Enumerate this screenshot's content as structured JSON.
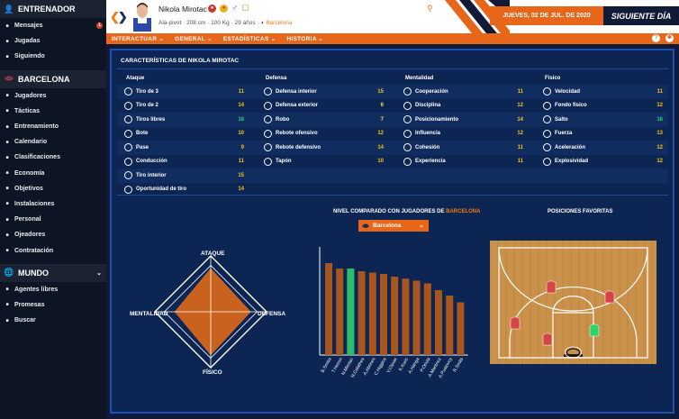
{
  "sidebar": {
    "coach": {
      "title": "ENTRENADOR",
      "items": [
        {
          "label": "Mensajes",
          "icon": "envelope-icon",
          "badge": "1"
        },
        {
          "label": "Jugadas",
          "icon": "clipboard-icon"
        },
        {
          "label": "Siguiendo",
          "icon": "star-icon"
        }
      ]
    },
    "team": {
      "title": "BARCELONA",
      "items": [
        {
          "label": "Jugadores",
          "icon": "people-icon"
        },
        {
          "label": "Tácticas",
          "icon": "tactics-icon"
        },
        {
          "label": "Entrenamiento",
          "icon": "whistle-icon"
        },
        {
          "label": "Calendario",
          "icon": "calendar-icon"
        },
        {
          "label": "Clasificaciones",
          "icon": "standings-icon"
        },
        {
          "label": "Economía",
          "icon": "money-icon"
        },
        {
          "label": "Objetivos",
          "icon": "target-icon"
        },
        {
          "label": "Instalaciones",
          "icon": "building-icon"
        },
        {
          "label": "Personal",
          "icon": "staff-icon"
        },
        {
          "label": "Ojeadores",
          "icon": "binoculars-icon"
        },
        {
          "label": "Contratación",
          "icon": "handshake-icon"
        }
      ]
    },
    "world": {
      "title": "MUNDO",
      "items": [
        {
          "label": "Agentes libres",
          "icon": "free-agents-icon"
        },
        {
          "label": "Promesas",
          "icon": "prospects-icon"
        },
        {
          "label": "Buscar",
          "icon": "search-icon"
        }
      ]
    }
  },
  "header": {
    "player_name": "Nikola Mirotac",
    "player_meta": "Ala-pivot · 208 cm · 100 Kg · 29 años ·",
    "team": "Barcelona",
    "date": "JUEVES, 02 DE JUL. DE 2020",
    "next_day": "SIGUIENTE DÍA"
  },
  "menu": [
    "INTERACTUAR ⌄",
    "GENERAL ⌄",
    "ESTADÍSTICAS ⌄",
    "HISTORIA ⌄"
  ],
  "characteristics": {
    "title": "CARACTERÍSTICAS DE NIKOLA MIROTAC",
    "columns": [
      {
        "title": "Ataque",
        "items": [
          {
            "label": "Tiro de 3",
            "value": "11"
          },
          {
            "label": "Tiro de 2",
            "value": "14"
          },
          {
            "label": "Tiros libres",
            "value": "16"
          },
          {
            "label": "Bote",
            "value": "10"
          },
          {
            "label": "Pase",
            "value": "9"
          },
          {
            "label": "Conducción",
            "value": "11"
          },
          {
            "label": "Tiro interior",
            "value": "15"
          },
          {
            "label": "Oportunidad de tiro",
            "value": "14"
          }
        ]
      },
      {
        "title": "Defensa",
        "items": [
          {
            "label": "Defensa interior",
            "value": "15"
          },
          {
            "label": "Defensa exterior",
            "value": "6"
          },
          {
            "label": "Robo",
            "value": "7"
          },
          {
            "label": "Rebote ofensivo",
            "value": "12"
          },
          {
            "label": "Rebote defensivo",
            "value": "14"
          },
          {
            "label": "Tapón",
            "value": "10"
          }
        ]
      },
      {
        "title": "Mentalidad",
        "items": [
          {
            "label": "Cooperación",
            "value": "11"
          },
          {
            "label": "Disciplina",
            "value": "12"
          },
          {
            "label": "Posicionamiento",
            "value": "14"
          },
          {
            "label": "Influencia",
            "value": "12"
          },
          {
            "label": "Cohesión",
            "value": "11"
          },
          {
            "label": "Experiencia",
            "value": "11"
          }
        ]
      },
      {
        "title": "Físico",
        "items": [
          {
            "label": "Velocidad",
            "value": "11"
          },
          {
            "label": "Fondo físico",
            "value": "12"
          },
          {
            "label": "Salto",
            "value": "16"
          },
          {
            "label": "Fuerza",
            "value": "13"
          },
          {
            "label": "Aceleración",
            "value": "12"
          },
          {
            "label": "Explosividad",
            "value": "12"
          }
        ]
      }
    ]
  },
  "radar": {
    "labels": {
      "top": "ATAQUE",
      "left": "MENTALIDAD",
      "right": "DEFENSA",
      "bottom": "FÍSICO"
    },
    "fill_color": "#c8621e",
    "values": {
      "top": 0.78,
      "left": 0.65,
      "right": 0.72,
      "bottom": 0.78
    }
  },
  "comparison": {
    "title_prefix": "NIVEL COMPARADO CON JUGADORES DE",
    "team": "BARCELONA",
    "select_value": "Barcelona"
  },
  "chart_data": {
    "type": "bar",
    "categories": [
      "B.Smiss",
      "T.Hezon",
      "N.Mirotac",
      "N.Calathes",
      "A.Abrines",
      "C.Higgins",
      "V.Claver",
      "K.Kuric",
      "A.Hanga",
      "P.Oriola",
      "A.Martinez",
      "A.Pustovoy",
      "R.Smits"
    ],
    "values": [
      13.6,
      12.8,
      12.8,
      12.4,
      12.2,
      12.0,
      11.6,
      11.3,
      11.0,
      10.6,
      9.6,
      8.8,
      7.8
    ],
    "highlight_index": 2,
    "colors": {
      "bar": "#a9561e",
      "highlight": "#2bbf6b"
    },
    "ylim": [
      0,
      16
    ]
  },
  "favorite_positions": {
    "title": "POSICIONES FAVORITAS",
    "colors": {
      "default": "#d64545",
      "preferred": "#2bd36b"
    },
    "preferred_position": "Ala-pivot"
  }
}
